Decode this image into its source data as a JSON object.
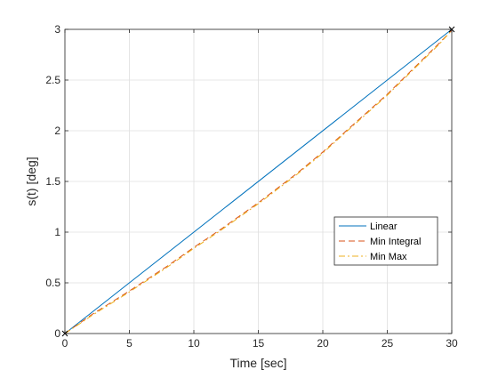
{
  "chart_data": {
    "type": "line",
    "title": "",
    "xlabel": "Time [sec]",
    "ylabel": "s(t) [deg]",
    "xlim": [
      0,
      30
    ],
    "ylim": [
      0,
      3
    ],
    "xticks": [
      0,
      5,
      10,
      15,
      20,
      25,
      30
    ],
    "yticks": [
      0,
      0.5,
      1,
      1.5,
      2,
      2.5,
      3
    ],
    "xtick_labels": [
      "0",
      "5",
      "10",
      "15",
      "20",
      "25",
      "30"
    ],
    "ytick_labels": [
      "0",
      "0.5",
      "1",
      "1.5",
      "2",
      "2.5",
      "3"
    ],
    "grid": true,
    "legend_position": "right, lower-middle",
    "series": [
      {
        "name": "Linear",
        "color": "#0072BD",
        "dash": "solid",
        "x": [
          0,
          30
        ],
        "y": [
          0,
          3
        ]
      },
      {
        "name": "Min Integral",
        "color": "#D95319",
        "dash": "dashed",
        "x": [
          0,
          2,
          5,
          8,
          10,
          12,
          15,
          18,
          20,
          22,
          25,
          27,
          29,
          30
        ],
        "y": [
          0,
          0.18,
          0.42,
          0.67,
          0.85,
          1.02,
          1.29,
          1.58,
          1.79,
          2.02,
          2.36,
          2.61,
          2.86,
          2.99
        ]
      },
      {
        "name": "Min Max",
        "color": "#EDB120",
        "dash": "dashdot",
        "x": [
          0,
          2,
          5,
          8,
          10,
          12,
          15,
          18,
          20,
          22,
          25,
          27,
          29,
          30
        ],
        "y": [
          0,
          0.17,
          0.41,
          0.66,
          0.84,
          1.01,
          1.28,
          1.57,
          1.78,
          2.01,
          2.35,
          2.6,
          2.85,
          2.99
        ]
      }
    ],
    "markers": [
      {
        "x": 0,
        "y": 0,
        "symbol": "x",
        "color": "#000000"
      },
      {
        "x": 30,
        "y": 3,
        "symbol": "x",
        "color": "#000000"
      }
    ]
  }
}
